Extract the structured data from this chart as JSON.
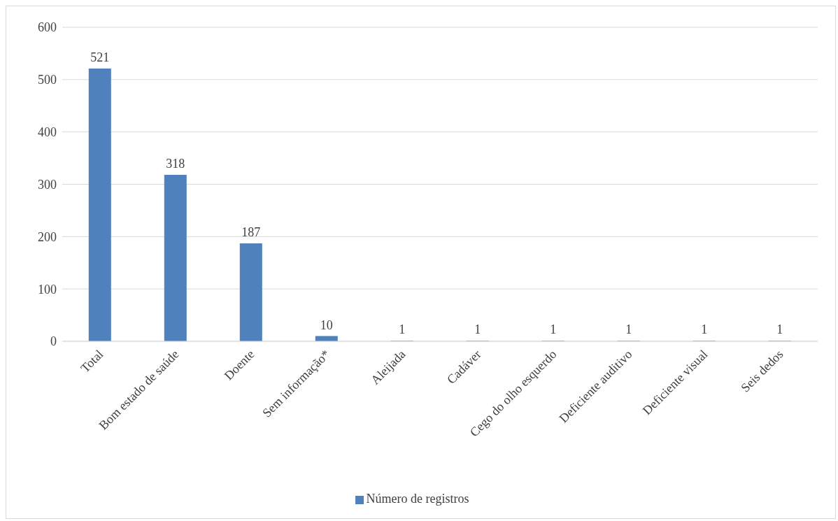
{
  "chart_data": {
    "type": "bar",
    "categories": [
      "Total",
      "Bom estado de saúde",
      "Doente",
      "Sem informação*",
      "Aleijada",
      "Cadáver",
      "Cego do olho esquerdo",
      "Deficiente auditivo",
      "Deficiente visual",
      "Seis dedos"
    ],
    "series": [
      {
        "name": "Número de registros",
        "color": "#4f81bd",
        "values": [
          521,
          318,
          187,
          10,
          1,
          1,
          1,
          1,
          1,
          1
        ]
      }
    ],
    "ylim": [
      0,
      600
    ],
    "yticks": [
      0,
      100,
      200,
      300,
      400,
      500,
      600
    ],
    "grid": "y",
    "legend": "bottom",
    "data_labels": true
  }
}
